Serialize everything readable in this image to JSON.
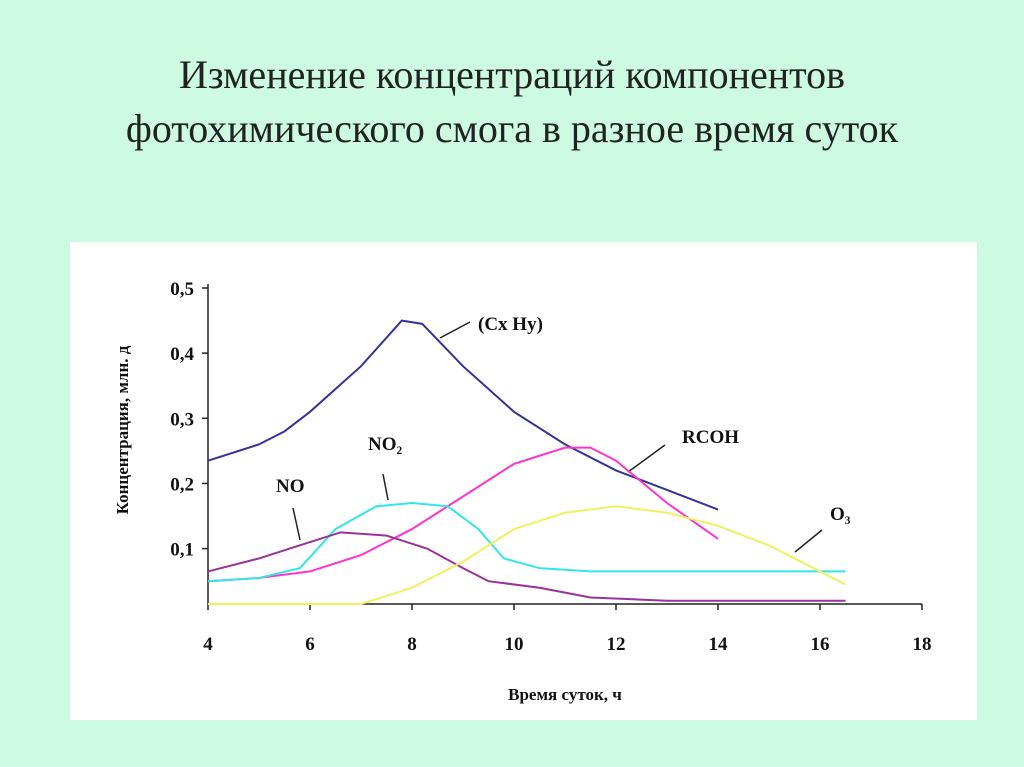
{
  "title": "Изменение концентраций компонентов фотохимического смога в разное время суток",
  "chart_data": {
    "type": "line",
    "xlabel": "Время суток, ч",
    "ylabel": "Концентрация, млн. д",
    "xlim": [
      4,
      18
    ],
    "ylim": [
      0.015,
      0.5
    ],
    "xticks": [
      4,
      6,
      8,
      10,
      12,
      14,
      16,
      18
    ],
    "yticks": [
      {
        "value": 0.1,
        "label": "0,1"
      },
      {
        "value": 0.2,
        "label": "0,2"
      },
      {
        "value": 0.3,
        "label": "0,3"
      },
      {
        "value": 0.4,
        "label": "0,4"
      },
      {
        "value": 0.5,
        "label": "0,5"
      }
    ],
    "series": [
      {
        "name": "(Cx Hy)",
        "color": "#333399",
        "x": [
          4,
          5,
          5.5,
          6,
          7,
          7.8,
          8.2,
          9,
          10,
          11,
          12,
          13,
          14
        ],
        "values": [
          0.235,
          0.26,
          0.28,
          0.31,
          0.38,
          0.45,
          0.445,
          0.38,
          0.31,
          0.26,
          0.22,
          0.19,
          0.16
        ]
      },
      {
        "name": "RCOH",
        "color": "#ff33cc",
        "x": [
          4,
          5,
          6,
          7,
          8,
          9,
          10,
          11,
          11.5,
          12,
          13,
          14
        ],
        "values": [
          0.05,
          0.055,
          0.065,
          0.09,
          0.13,
          0.18,
          0.23,
          0.255,
          0.255,
          0.235,
          0.17,
          0.115
        ]
      },
      {
        "name": "NO₂",
        "color": "#33e6e6",
        "x": [
          4,
          5,
          5.8,
          6.5,
          7.3,
          8,
          8.7,
          9.3,
          9.8,
          10.5,
          11.5,
          16.5
        ],
        "values": [
          0.05,
          0.055,
          0.07,
          0.13,
          0.165,
          0.17,
          0.165,
          0.13,
          0.085,
          0.07,
          0.065,
          0.065
        ]
      },
      {
        "name": "NO",
        "color": "#993399",
        "x": [
          4,
          5,
          6,
          6.6,
          7.5,
          8.3,
          9,
          9.5,
          10.5,
          11.5,
          13,
          16.5
        ],
        "values": [
          0.065,
          0.085,
          0.11,
          0.125,
          0.12,
          0.1,
          0.07,
          0.05,
          0.04,
          0.025,
          0.02,
          0.02
        ]
      },
      {
        "name": "O₃",
        "color": "#f0f060",
        "x": [
          4,
          7,
          8,
          9,
          10,
          11,
          12,
          13,
          14,
          15,
          16,
          16.5
        ],
        "values": [
          0.015,
          0.015,
          0.04,
          0.08,
          0.13,
          0.155,
          0.165,
          0.155,
          0.135,
          0.105,
          0.065,
          0.045
        ]
      }
    ]
  }
}
